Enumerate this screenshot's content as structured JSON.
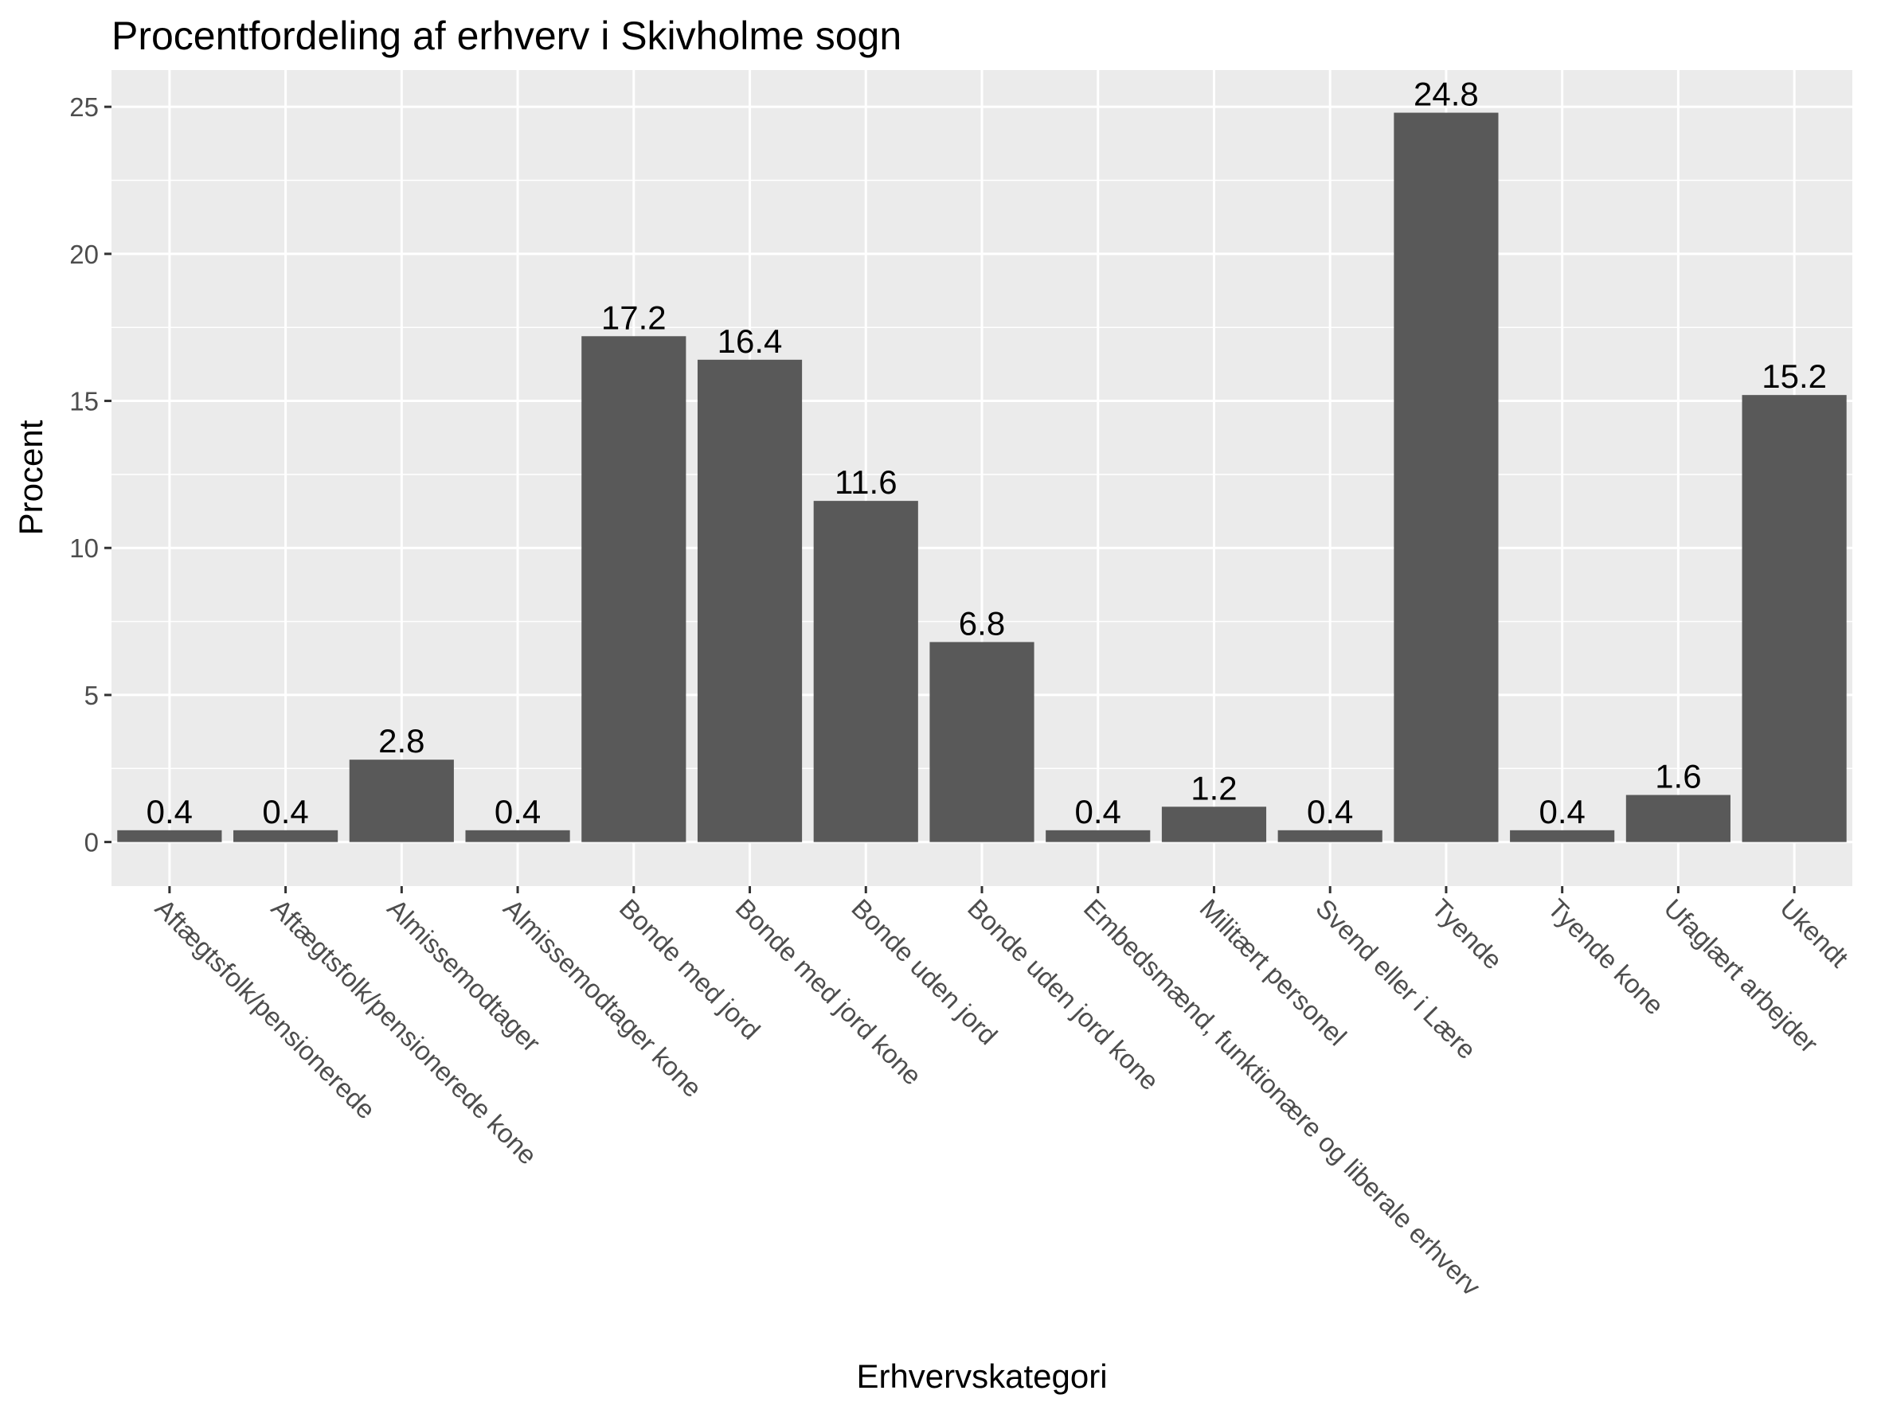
{
  "chart_data": {
    "type": "bar",
    "title": "Procentfordeling af erhverv i Skivholme sogn",
    "xlabel": "Erhvervskategori",
    "ylabel": "Procent",
    "ylim": [
      -1.5,
      26.25
    ],
    "yticks": [
      0,
      5,
      10,
      15,
      20,
      25
    ],
    "grid": true,
    "categories": [
      "Aftægtsfolk/pensionerede",
      "Aftægtsfolk/pensionerede kone",
      "Almissemodtager",
      "Almissemodtager kone",
      "Bonde med jord",
      "Bonde med jord kone",
      "Bonde uden jord",
      "Bonde uden jord kone",
      "Embedsmænd, funktionære og liberale erhverv",
      "Militært personel",
      "Svend eller i Lære",
      "Tyende",
      "Tyende kone",
      "Ufaglært arbejder",
      "Ukendt"
    ],
    "values": [
      0.4,
      0.4,
      2.8,
      0.4,
      17.2,
      16.4,
      11.6,
      6.8,
      0.4,
      1.2,
      0.4,
      24.8,
      0.4,
      1.6,
      15.2
    ],
    "data_labels": [
      "0.4",
      "0.4",
      "2.8",
      "0.4",
      "17.2",
      "16.4",
      "11.6",
      "6.8",
      "0.4",
      "1.2",
      "0.4",
      "24.8",
      "0.4",
      "1.6",
      "15.2"
    ],
    "colors": {
      "bar": "#595959",
      "panel": "#ebebeb",
      "grid": "#ffffff",
      "tick_text": "#4d4d4d",
      "tick_mark": "#333333"
    }
  }
}
